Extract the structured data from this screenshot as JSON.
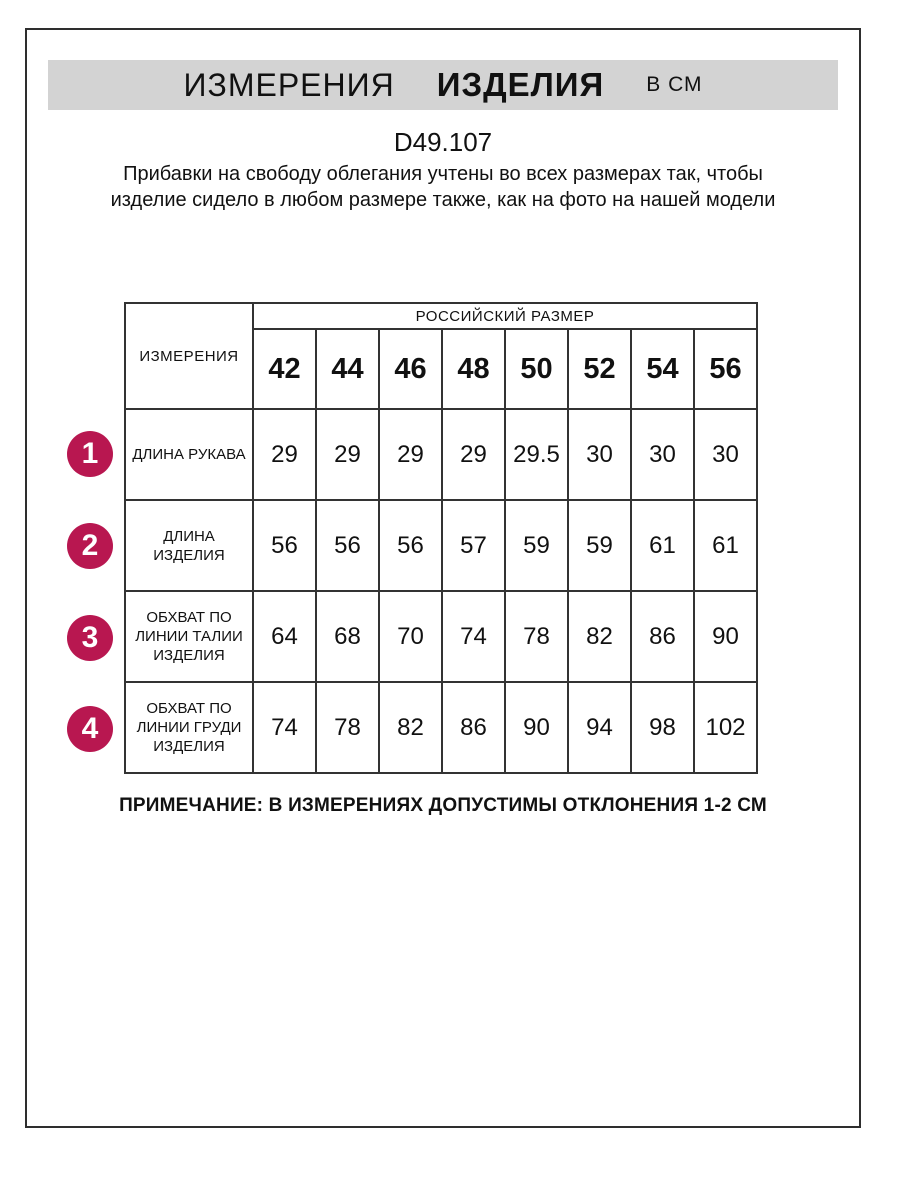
{
  "banner": {
    "title_regular": "ИЗМЕРЕНИЯ",
    "title_bold": "ИЗДЕЛИЯ",
    "title_unit": "В СМ"
  },
  "product_code": "D49.107",
  "intro_text": "Прибавки на свободу облегания учтены во всех размерах так, чтобы изделие сидело в любом размере также, как на фото на нашей модели",
  "table": {
    "measurements_header": "ИЗМЕРЕНИЯ",
    "size_group_header": "РОССИЙСКИЙ РАЗМЕР",
    "sizes": [
      "42",
      "44",
      "46",
      "48",
      "50",
      "52",
      "54",
      "56"
    ],
    "rows": [
      {
        "num": "1",
        "label": "ДЛИНА РУКАВА",
        "values": [
          "29",
          "29",
          "29",
          "29",
          "29.5",
          "30",
          "30",
          "30"
        ]
      },
      {
        "num": "2",
        "label": "ДЛИНА\nИЗДЕЛИЯ",
        "values": [
          "56",
          "56",
          "56",
          "57",
          "59",
          "59",
          "61",
          "61"
        ]
      },
      {
        "num": "3",
        "label": "ОБХВАТ ПО\nЛИНИИ ТАЛИИ\nИЗДЕЛИЯ",
        "values": [
          "64",
          "68",
          "70",
          "74",
          "78",
          "82",
          "86",
          "90"
        ]
      },
      {
        "num": "4",
        "label": "ОБХВАТ ПО\nЛИНИИ ГРУДИ\nИЗДЕЛИЯ",
        "values": [
          "74",
          "78",
          "82",
          "86",
          "90",
          "94",
          "98",
          "102"
        ]
      }
    ]
  },
  "note_text": "ПРИМЕЧАНИЕ: В ИЗМЕРЕНИЯХ ДОПУСТИМЫ ОТКЛОНЕНИЯ 1-2 СМ",
  "colors": {
    "badge_bg": "#b81750",
    "banner_bg": "#d3d3d3",
    "table_border": "#333333",
    "frame_border": "#2e2e2e"
  }
}
